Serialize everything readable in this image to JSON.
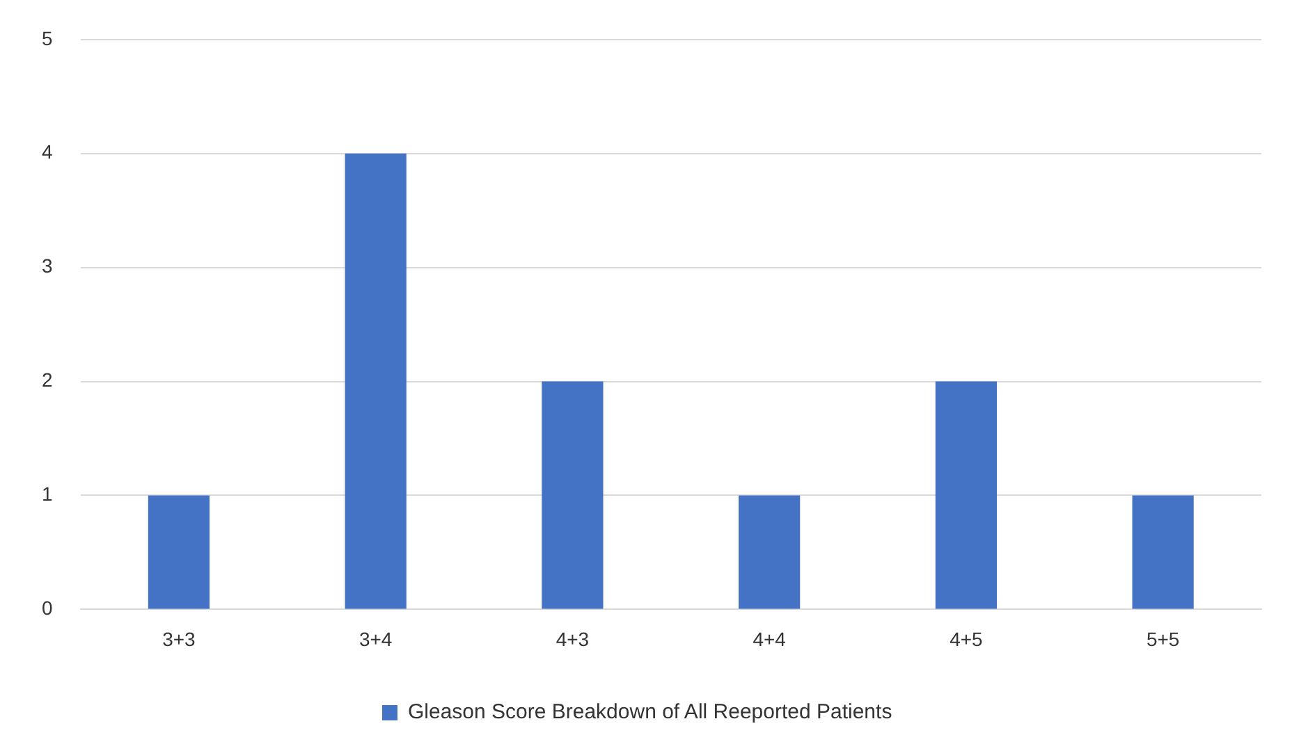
{
  "chart_data": {
    "type": "bar",
    "categories": [
      "3+3",
      "3+4",
      "4+3",
      "4+4",
      "4+5",
      "5+5"
    ],
    "series": [
      {
        "name": "Gleason Score Breakdown of All Reeported Patients",
        "color": "#4472c4",
        "values": [
          1,
          4,
          2,
          1,
          2,
          1
        ]
      }
    ],
    "ylim": [
      0,
      5
    ],
    "yticks": [
      0,
      1,
      2,
      3,
      4,
      5
    ],
    "grid": "y",
    "legend": "bottom"
  }
}
